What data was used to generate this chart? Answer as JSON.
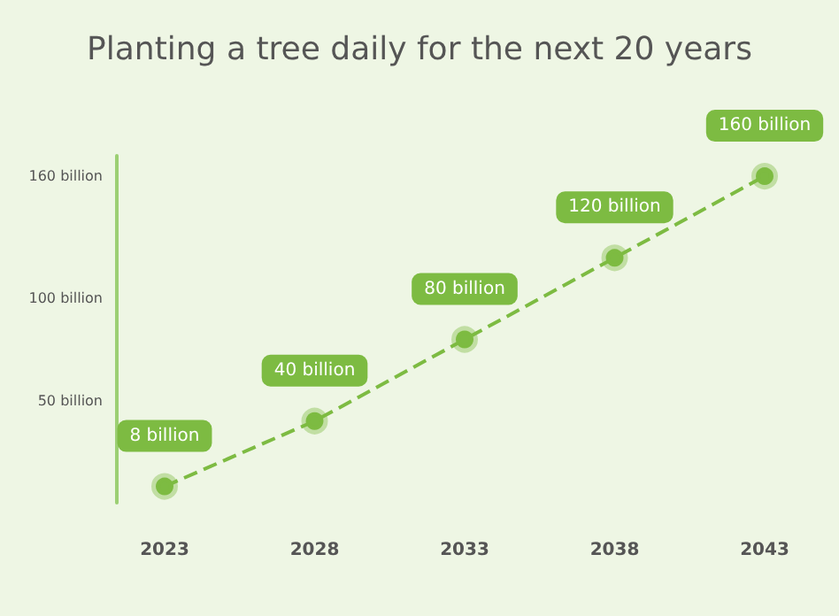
{
  "chart_data": {
    "type": "line",
    "title": "Planting a tree daily for the next 20 years",
    "categories": [
      "2023",
      "2028",
      "2033",
      "2038",
      "2043"
    ],
    "series": [
      {
        "color": "#7dbb42",
        "values": [
          8,
          40,
          80,
          120,
          160
        ],
        "value_labels": [
          "8 billion",
          "40 billion",
          "80 billion",
          "120 billion",
          "160 billion"
        ]
      }
    ],
    "ylim": [
      0,
      170
    ],
    "yticks": [
      {
        "value": 50,
        "label": "50 billion"
      },
      {
        "value": 100,
        "label": "100 billion"
      },
      {
        "value": 160,
        "label": "160 billion"
      }
    ],
    "grid": false,
    "marker": "circle",
    "line_style": "dashed"
  }
}
